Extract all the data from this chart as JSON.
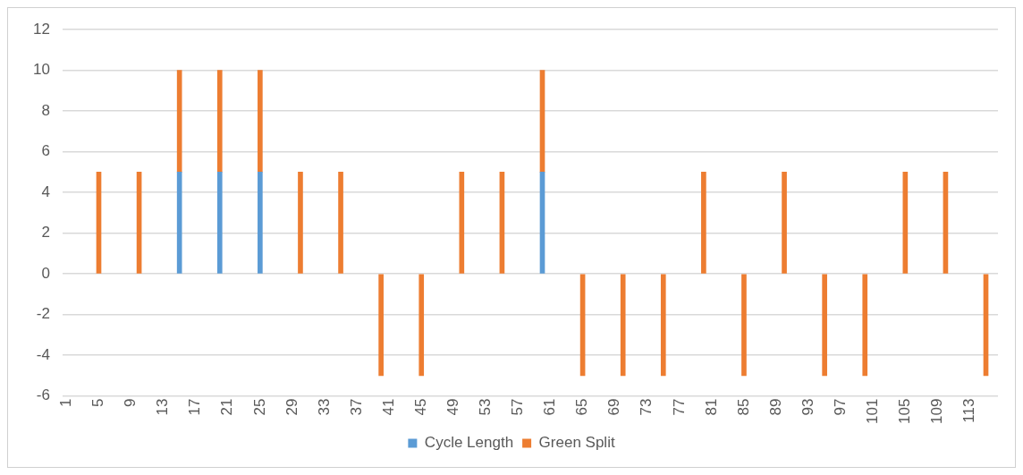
{
  "chart_data": {
    "type": "bar",
    "stacked": true,
    "categories": [
      "1",
      null,
      null,
      null,
      "5",
      null,
      null,
      null,
      "9",
      null,
      null,
      null,
      "13",
      null,
      null,
      null,
      "17",
      null,
      null,
      null,
      "21",
      null,
      null,
      null,
      "25",
      null,
      null,
      null,
      "29",
      null,
      null,
      null,
      "33",
      null,
      null,
      null,
      "37",
      null,
      null,
      null,
      "41",
      null,
      null,
      null,
      "45",
      null,
      null,
      null,
      "49",
      null,
      null,
      null,
      "53",
      null,
      null,
      null,
      "57",
      null,
      null,
      null,
      "61",
      null,
      null,
      null,
      "65",
      null,
      null,
      null,
      "69",
      null,
      null,
      null,
      "73",
      null,
      null,
      null,
      "77",
      null,
      null,
      null,
      "81",
      null,
      null,
      null,
      "85",
      null,
      null,
      null,
      "89",
      null,
      null,
      null,
      "93",
      null,
      null,
      null,
      "97",
      null,
      null,
      null,
      "101",
      null,
      null,
      null,
      "105",
      null,
      null,
      null,
      "109",
      null,
      null,
      null,
      "113",
      null,
      null,
      null
    ],
    "series": [
      {
        "name": "Cycle Length",
        "color": "#5b9bd5",
        "values": [
          null,
          null,
          null,
          null,
          null,
          null,
          null,
          null,
          null,
          null,
          null,
          null,
          null,
          null,
          5,
          null,
          null,
          null,
          null,
          5,
          null,
          null,
          null,
          null,
          5,
          null,
          null,
          null,
          null,
          null,
          null,
          null,
          null,
          null,
          null,
          null,
          null,
          null,
          null,
          null,
          null,
          null,
          null,
          null,
          null,
          null,
          null,
          null,
          null,
          null,
          null,
          null,
          null,
          null,
          null,
          null,
          null,
          null,
          null,
          5,
          null,
          null,
          null,
          null,
          null,
          null,
          null,
          null,
          null,
          null,
          null,
          null,
          null,
          null,
          null,
          null,
          null,
          null,
          null,
          null,
          null,
          null,
          null,
          null,
          null,
          null,
          null,
          null,
          null,
          null,
          null,
          null,
          null,
          null,
          null,
          null,
          null,
          null,
          null,
          null,
          null,
          null,
          null,
          null,
          null,
          null,
          null,
          null,
          null,
          null,
          null,
          null,
          null,
          null,
          null,
          null
        ]
      },
      {
        "name": "Green Split",
        "color": "#ed7d31",
        "values": [
          null,
          null,
          null,
          null,
          5,
          null,
          null,
          null,
          null,
          5,
          null,
          null,
          null,
          null,
          5,
          null,
          null,
          null,
          null,
          5,
          null,
          null,
          null,
          null,
          5,
          null,
          null,
          null,
          null,
          5,
          null,
          null,
          null,
          null,
          5,
          null,
          null,
          null,
          null,
          -5,
          null,
          null,
          null,
          null,
          -5,
          null,
          null,
          null,
          null,
          5,
          null,
          null,
          null,
          null,
          5,
          null,
          null,
          null,
          null,
          5,
          null,
          null,
          null,
          null,
          -5,
          null,
          null,
          null,
          null,
          -5,
          null,
          null,
          null,
          null,
          -5,
          null,
          null,
          null,
          null,
          5,
          null,
          null,
          null,
          null,
          -5,
          null,
          null,
          null,
          null,
          5,
          null,
          null,
          null,
          null,
          -5,
          null,
          null,
          null,
          null,
          -5,
          null,
          null,
          null,
          null,
          5,
          null,
          null,
          null,
          null,
          5,
          null,
          null,
          null,
          null,
          -5,
          null
        ]
      }
    ],
    "ylim": [
      -6,
      12
    ],
    "yticks": [
      -6,
      -4,
      -2,
      0,
      2,
      4,
      6,
      8,
      10,
      12
    ],
    "grid": "y",
    "legend": "bottom"
  }
}
